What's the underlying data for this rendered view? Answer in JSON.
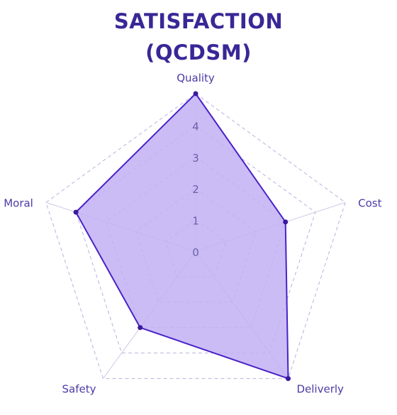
{
  "chart_data": {
    "type": "radar",
    "title_line1": "SATISFACTION",
    "title_line2": "(QCDSM)",
    "axes": [
      "Quality",
      "Cost",
      "Deliverly",
      "Safety",
      "Moral"
    ],
    "values": [
      5,
      3,
      5,
      3,
      4
    ],
    "range": [
      0,
      5
    ],
    "ticks": [
      0,
      1,
      2,
      3,
      4
    ],
    "colors": {
      "title": "#3a2796",
      "fill": "#c2b0f5",
      "stroke": "#4a22c8",
      "point": "#3a1a9e",
      "grid": "#b9b2dc",
      "spoke": "#cfcae6",
      "axis_label": "#4b3aa6",
      "tick_label": "#6d63a8"
    }
  }
}
